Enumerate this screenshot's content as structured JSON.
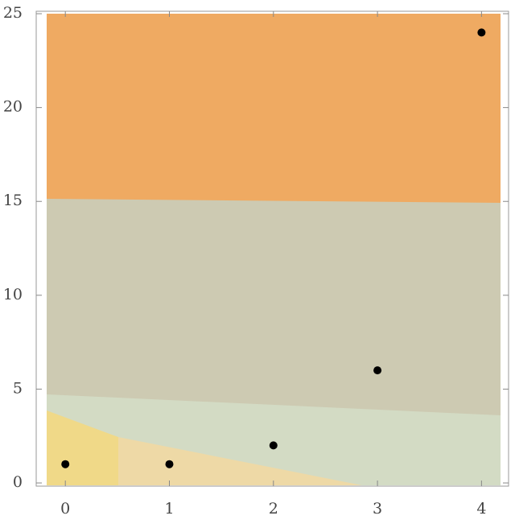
{
  "chart_data": {
    "type": "scatter",
    "x": [
      0,
      1,
      2,
      3,
      4
    ],
    "values": [
      1,
      1,
      2,
      6,
      24
    ],
    "color": "#000000",
    "xlim": [
      -0.28,
      4.26
    ],
    "xticks": [
      0,
      1,
      2,
      3,
      4
    ],
    "ylim": [
      -0.17,
      25.13
    ],
    "yticks": [
      0,
      5,
      10,
      15,
      20,
      25
    ]
  }
}
